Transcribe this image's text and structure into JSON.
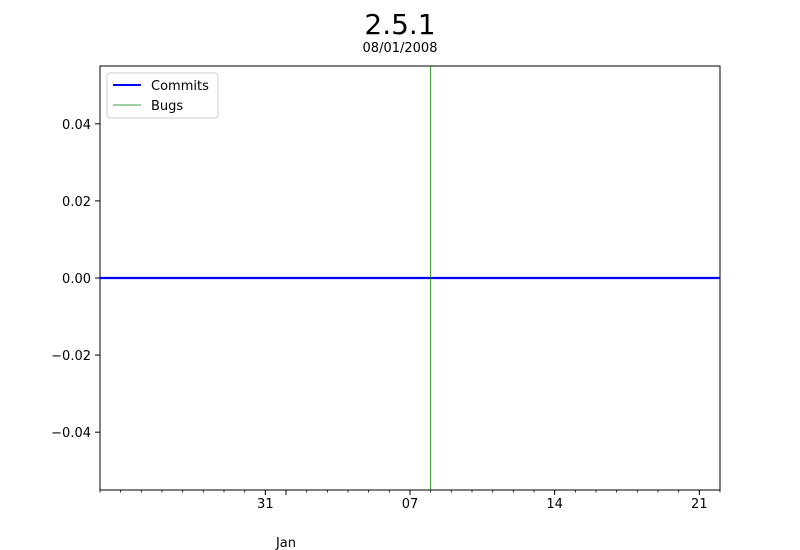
{
  "chart_data": {
    "type": "line",
    "title": "2.5.1",
    "subtitle": "08/01/2008",
    "xlabel": "",
    "ylabel": "",
    "x_axis_kind": "date",
    "xlim": [
      "2007-12-23",
      "2008-01-22"
    ],
    "ylim": [
      -0.055,
      0.055
    ],
    "x_major_ticks": [
      {
        "date": "2007-12-31",
        "label": "31"
      },
      {
        "date": "2008-01-07",
        "label": "07"
      },
      {
        "date": "2008-01-14",
        "label": "14"
      },
      {
        "date": "2008-01-21",
        "label": "21"
      }
    ],
    "x_month_label": {
      "date": "2008-01-01",
      "label": "Jan"
    },
    "y_ticks": [
      {
        "value": 0.04,
        "label": "0.04"
      },
      {
        "value": 0.02,
        "label": "0.02"
      },
      {
        "value": 0.0,
        "label": "0.00"
      },
      {
        "value": -0.02,
        "label": "−0.02"
      },
      {
        "value": -0.04,
        "label": "−0.04"
      }
    ],
    "series": [
      {
        "name": "Commits",
        "color": "#0000ff",
        "style": "thick-line",
        "points": [
          {
            "x": "2007-12-23",
            "y": 0
          },
          {
            "x": "2008-01-22",
            "y": 0
          }
        ]
      },
      {
        "name": "Bugs",
        "color": "#008000",
        "style": "thin-vertical-line",
        "x": "2008-01-08"
      }
    ],
    "legend": {
      "position": "top-left",
      "entries": [
        "Commits",
        "Bugs"
      ]
    },
    "grid": false
  }
}
